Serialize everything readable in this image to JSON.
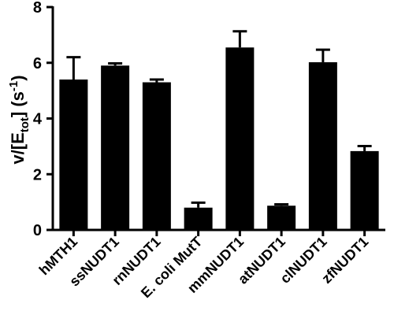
{
  "chart_data": {
    "type": "bar",
    "categories": [
      "hMTH1",
      "ssNUDT1",
      "rnNUDT1",
      "E. coli MutT",
      "mmNUDT1",
      "atNUDT1",
      "clNUDT1",
      "zfNUDT1"
    ],
    "values": [
      5.4,
      5.9,
      5.3,
      0.8,
      6.55,
      0.87,
      6.02,
      2.83
    ],
    "errors": [
      0.8,
      0.08,
      0.1,
      0.18,
      0.58,
      0.05,
      0.45,
      0.18
    ],
    "ylabel": {
      "main": "v/[E",
      "sub": "tot",
      "mid": "] (s",
      "sup": "-1",
      "end": ")"
    },
    "ylim": [
      0,
      8
    ],
    "yticks": [
      "0",
      "2",
      "4",
      "6",
      "8"
    ],
    "grid": false,
    "bar_color": "#000000"
  }
}
